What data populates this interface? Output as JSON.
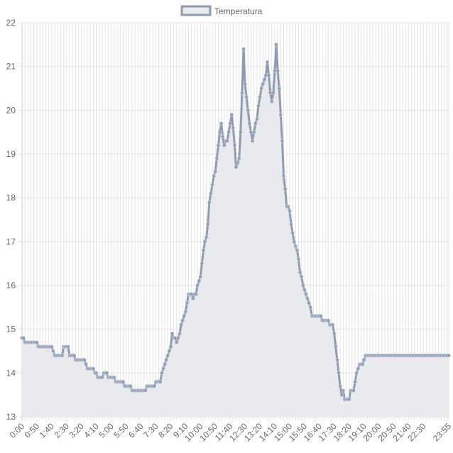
{
  "chart_data": {
    "type": "line",
    "legend": {
      "position": "top",
      "entries": [
        "Temperatura"
      ]
    },
    "colors": {
      "line": "#8f9bb0",
      "fill": "#e8eaee",
      "point": "#8f9bb0",
      "grid": "#e5e5e5",
      "axis_text": "#666666"
    },
    "grid": true,
    "ylim": [
      13,
      22
    ],
    "y_ticks": [
      13,
      14,
      15,
      16,
      17,
      18,
      19,
      20,
      21,
      22
    ],
    "x_tick_labels": [
      "0:00",
      "0:50",
      "1:40",
      "2:30",
      "3:20",
      "4:10",
      "5:00",
      "5:50",
      "6:40",
      "7:30",
      "8:20",
      "9:10",
      "10:00",
      "10:50",
      "11:40",
      "12:30",
      "13:20",
      "14:10",
      "15:00",
      "15:50",
      "16:40",
      "17:30",
      "18:20",
      "19:10",
      "20:00",
      "20:50",
      "21:40",
      "22:30",
      "23:55"
    ],
    "x_start": "0:00",
    "x_end": "23:55",
    "x_interval_minutes": 5,
    "series": [
      {
        "name": "Temperatura",
        "anchors": [
          [
            "0:00",
            14.8
          ],
          [
            "0:10",
            14.7
          ],
          [
            "0:40",
            14.7
          ],
          [
            "0:50",
            14.7
          ],
          [
            "0:55",
            14.6
          ],
          [
            "1:40",
            14.6
          ],
          [
            "1:45",
            14.5
          ],
          [
            "1:50",
            14.4
          ],
          [
            "2:15",
            14.4
          ],
          [
            "2:20",
            14.6
          ],
          [
            "2:35",
            14.6
          ],
          [
            "2:40",
            14.4
          ],
          [
            "2:55",
            14.4
          ],
          [
            "3:00",
            14.3
          ],
          [
            "3:30",
            14.3
          ],
          [
            "3:35",
            14.2
          ],
          [
            "3:40",
            14.1
          ],
          [
            "4:00",
            14.1
          ],
          [
            "4:05",
            14.0
          ],
          [
            "4:15",
            13.9
          ],
          [
            "4:30",
            13.9
          ],
          [
            "4:35",
            14.0
          ],
          [
            "4:45",
            14.0
          ],
          [
            "4:50",
            13.9
          ],
          [
            "5:10",
            13.9
          ],
          [
            "5:15",
            13.8
          ],
          [
            "5:40",
            13.8
          ],
          [
            "5:45",
            13.7
          ],
          [
            "6:05",
            13.7
          ],
          [
            "6:10",
            13.6
          ],
          [
            "6:55",
            13.6
          ],
          [
            "7:00",
            13.7
          ],
          [
            "7:25",
            13.7
          ],
          [
            "7:30",
            13.8
          ],
          [
            "7:45",
            13.8
          ],
          [
            "7:50",
            14.0
          ],
          [
            "8:00",
            14.2
          ],
          [
            "8:10",
            14.4
          ],
          [
            "8:20",
            14.6
          ],
          [
            "8:25",
            14.9
          ],
          [
            "8:30",
            14.8
          ],
          [
            "8:40",
            14.7
          ],
          [
            "8:45",
            14.8
          ],
          [
            "8:50",
            14.9
          ],
          [
            "9:00",
            15.2
          ],
          [
            "9:10",
            15.4
          ],
          [
            "9:15",
            15.6
          ],
          [
            "9:20",
            15.8
          ],
          [
            "9:25",
            15.8
          ],
          [
            "9:35",
            15.7
          ],
          [
            "9:45",
            15.8
          ],
          [
            "9:50",
            16.0
          ],
          [
            "10:00",
            16.2
          ],
          [
            "10:05",
            16.5
          ],
          [
            "10:10",
            16.8
          ],
          [
            "10:20",
            17.1
          ],
          [
            "10:25",
            17.4
          ],
          [
            "10:30",
            17.9
          ],
          [
            "10:40",
            18.3
          ],
          [
            "10:50",
            18.6
          ],
          [
            "10:55",
            18.9
          ],
          [
            "11:00",
            19.2
          ],
          [
            "11:05",
            19.5
          ],
          [
            "11:10",
            19.7
          ],
          [
            "11:15",
            19.4
          ],
          [
            "11:20",
            19.2
          ],
          [
            "11:30",
            19.3
          ],
          [
            "11:40",
            19.7
          ],
          [
            "11:45",
            19.9
          ],
          [
            "11:50",
            19.6
          ],
          [
            "11:55",
            19.2
          ],
          [
            "12:00",
            18.7
          ],
          [
            "12:10",
            18.9
          ],
          [
            "12:15",
            19.5
          ],
          [
            "12:20",
            20.4
          ],
          [
            "12:25",
            21.4
          ],
          [
            "12:30",
            20.6
          ],
          [
            "12:35",
            20.3
          ],
          [
            "12:40",
            20.0
          ],
          [
            "12:45",
            19.7
          ],
          [
            "12:55",
            19.3
          ],
          [
            "13:00",
            19.5
          ],
          [
            "13:10",
            19.8
          ],
          [
            "13:15",
            20.1
          ],
          [
            "13:20",
            20.3
          ],
          [
            "13:30",
            20.6
          ],
          [
            "13:40",
            20.8
          ],
          [
            "13:45",
            21.1
          ],
          [
            "13:50",
            20.8
          ],
          [
            "13:55",
            20.4
          ],
          [
            "14:00",
            20.2
          ],
          [
            "14:05",
            20.4
          ],
          [
            "14:10",
            20.9
          ],
          [
            "14:15",
            21.5
          ],
          [
            "14:20",
            20.9
          ],
          [
            "14:25",
            20.5
          ],
          [
            "14:30",
            19.9
          ],
          [
            "14:35",
            19.3
          ],
          [
            "14:40",
            18.5
          ],
          [
            "14:45",
            18.2
          ],
          [
            "14:50",
            17.8
          ],
          [
            "15:00",
            17.7
          ],
          [
            "15:05",
            17.4
          ],
          [
            "15:10",
            17.2
          ],
          [
            "15:20",
            16.9
          ],
          [
            "15:30",
            16.6
          ],
          [
            "15:35",
            16.3
          ],
          [
            "15:45",
            16.0
          ],
          [
            "15:55",
            15.8
          ],
          [
            "16:05",
            15.6
          ],
          [
            "16:15",
            15.3
          ],
          [
            "16:45",
            15.3
          ],
          [
            "16:50",
            15.2
          ],
          [
            "17:10",
            15.2
          ],
          [
            "17:15",
            15.1
          ],
          [
            "17:25",
            15.1
          ],
          [
            "17:30",
            14.9
          ],
          [
            "17:35",
            14.6
          ],
          [
            "17:40",
            14.3
          ],
          [
            "17:45",
            14.0
          ],
          [
            "17:50",
            13.7
          ],
          [
            "17:55",
            13.5
          ],
          [
            "18:00",
            13.6
          ],
          [
            "18:05",
            13.4
          ],
          [
            "18:20",
            13.4
          ],
          [
            "18:25",
            13.6
          ],
          [
            "18:35",
            13.6
          ],
          [
            "18:40",
            13.8
          ],
          [
            "18:50",
            14.1
          ],
          [
            "19:00",
            14.2
          ],
          [
            "19:05",
            14.2
          ],
          [
            "19:10",
            14.3
          ],
          [
            "19:15",
            14.4
          ],
          [
            "19:20",
            14.4
          ]
        ]
      }
    ]
  }
}
